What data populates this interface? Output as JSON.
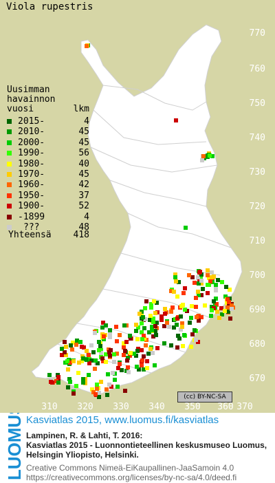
{
  "title": "Viola rupestris",
  "y_ticks": [
    "770",
    "760",
    "750",
    "740",
    "730",
    "720",
    "710",
    "700",
    "690",
    "680",
    "670"
  ],
  "x_ticks": [
    "310",
    "320",
    "330",
    "340",
    "350",
    "360",
    "370"
  ],
  "legend": {
    "head": [
      "Uusimman",
      "havainnon"
    ],
    "col_year": "vuosi",
    "col_count": "lkm",
    "rows": [
      {
        "label": "2015-",
        "count": "4",
        "color": "#006600"
      },
      {
        "label": "2010-",
        "count": "45",
        "color": "#009900"
      },
      {
        "label": "2000-",
        "count": "45",
        "color": "#00cc00"
      },
      {
        "label": "1990-",
        "count": "56",
        "color": "#33ff00"
      },
      {
        "label": "1980-",
        "count": "40",
        "color": "#ffff00"
      },
      {
        "label": "1970-",
        "count": "45",
        "color": "#ffcc00"
      },
      {
        "label": "1960-",
        "count": "42",
        "color": "#ff6600"
      },
      {
        "label": "1950-",
        "count": "37",
        "color": "#ff3300"
      },
      {
        "label": "1900-",
        "count": "52",
        "color": "#cc0000"
      },
      {
        "label": "-1899",
        "count": "4",
        "color": "#880000"
      },
      {
        "label": "???",
        "count": "48",
        "color": "#cccccc"
      }
    ],
    "total_label": "Yhteensä",
    "total_count": "418"
  },
  "cc_badge": "(cc) BY-NC-SA",
  "footer": {
    "logo_text": "LUOMUS",
    "link_line": "Kasviatlas 2015, www.luomus.fi/kasviatlas",
    "citation1": "Lampinen, R. & Lahti, T. 2016:",
    "citation2": "Kasviatlas 2015 - Luonnontieteellinen keskusmuseo Luomus,",
    "citation3": "Helsingin Yliopisto, Helsinki.",
    "license1": "Creative Commons Nimeä-EiKaupallinen-JaaSamoin 4.0",
    "license2": "https://creativecommons.org/licenses/by-nc-sa/4.0/deed.fi"
  },
  "colors": {
    "background": "#d6d6a6",
    "land": "#ffffff",
    "border": "#bfbfbf",
    "link": "#1a8fd4"
  }
}
